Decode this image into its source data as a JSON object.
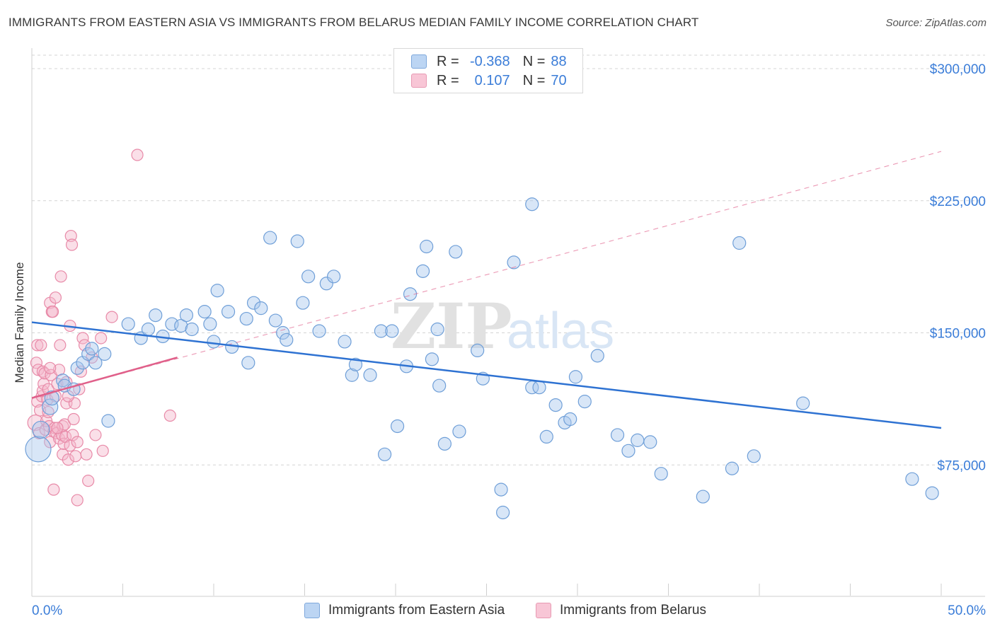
{
  "title": "IMMIGRANTS FROM EASTERN ASIA VS IMMIGRANTS FROM BELARUS MEDIAN FAMILY INCOME CORRELATION CHART",
  "source": "Source: ZipAtlas.com",
  "watermark": {
    "zip": "ZIP",
    "atlas": "atlas"
  },
  "legend_top": [
    {
      "r_label": "R =",
      "r_value": "-0.368",
      "n_label": "N =",
      "n_value": "88"
    },
    {
      "r_label": "R =",
      "r_value": "0.107",
      "n_label": "N =",
      "n_value": "70"
    }
  ],
  "legend_bottom": [
    "Immigrants from Eastern Asia",
    "Immigrants from Belarus"
  ],
  "colors": {
    "blue_fill": "#a9c8ee",
    "blue_stroke": "#6f9fd8",
    "blue_line": "#2e72d2",
    "pink_fill": "#f5b8cb",
    "pink_stroke": "#e88aa8",
    "pink_line": "#e0608a",
    "axis_text_blue": "#3b7dd8",
    "grid": "#d4d4d4"
  },
  "chart_data": {
    "type": "scatter",
    "title": "IMMIGRANTS FROM EASTERN ASIA VS IMMIGRANTS FROM BELARUS MEDIAN FAMILY INCOME CORRELATION CHART",
    "xlabel": "",
    "ylabel": "Median Family Income",
    "xlim": [
      0,
      50
    ],
    "ylim": [
      0,
      315000
    ],
    "x_tick_labels": [
      "0.0%",
      "50.0%"
    ],
    "y_ticks": [
      75000,
      150000,
      225000,
      300000
    ],
    "y_tick_labels": [
      "$75,000",
      "$150,000",
      "$225,000",
      "$300,000"
    ],
    "grid": true,
    "legend_position": "top-center",
    "series": [
      {
        "name": "Immigrants from Eastern Asia",
        "r": -0.368,
        "n": 88,
        "trend": {
          "x": [
            0,
            50
          ],
          "y": [
            156000,
            96000
          ]
        },
        "points": [
          [
            0.35,
            84000,
            18
          ],
          [
            0.5,
            95000,
            12
          ],
          [
            1.0,
            108000,
            11
          ],
          [
            1.1,
            113000,
            10
          ],
          [
            1.7,
            123000,
            9
          ],
          [
            1.8,
            120000,
            9
          ],
          [
            2.3,
            118000,
            9
          ],
          [
            2.5,
            130000,
            9
          ],
          [
            2.8,
            133000,
            9
          ],
          [
            3.1,
            138000,
            9
          ],
          [
            3.3,
            141000,
            9
          ],
          [
            3.5,
            133000,
            9
          ],
          [
            4.0,
            138000,
            9
          ],
          [
            4.2,
            100000,
            9
          ],
          [
            5.3,
            155000,
            9
          ],
          [
            6.0,
            147000,
            9
          ],
          [
            6.4,
            152000,
            9
          ],
          [
            6.8,
            160000,
            9
          ],
          [
            7.2,
            148000,
            9
          ],
          [
            7.7,
            155000,
            9
          ],
          [
            8.2,
            154000,
            9
          ],
          [
            8.5,
            160000,
            9
          ],
          [
            8.8,
            152000,
            9
          ],
          [
            9.5,
            162000,
            9
          ],
          [
            9.8,
            155000,
            9
          ],
          [
            10.0,
            145000,
            9
          ],
          [
            10.2,
            174000,
            9
          ],
          [
            10.8,
            162000,
            9
          ],
          [
            11.0,
            142000,
            9
          ],
          [
            11.8,
            158000,
            9
          ],
          [
            11.9,
            133000,
            9
          ],
          [
            12.2,
            167000,
            9
          ],
          [
            12.6,
            164000,
            9
          ],
          [
            13.1,
            204000,
            9
          ],
          [
            13.4,
            157000,
            9
          ],
          [
            13.8,
            150000,
            9
          ],
          [
            14.0,
            146000,
            9
          ],
          [
            14.6,
            202000,
            9
          ],
          [
            14.9,
            167000,
            9
          ],
          [
            15.2,
            182000,
            9
          ],
          [
            15.8,
            151000,
            9
          ],
          [
            16.2,
            178000,
            9
          ],
          [
            16.6,
            182000,
            9
          ],
          [
            17.2,
            145000,
            9
          ],
          [
            17.6,
            126000,
            9
          ],
          [
            17.8,
            132000,
            9
          ],
          [
            18.6,
            126000,
            9
          ],
          [
            19.2,
            151000,
            9
          ],
          [
            19.4,
            81000,
            9
          ],
          [
            19.8,
            151000,
            9
          ],
          [
            20.1,
            97000,
            9
          ],
          [
            20.6,
            131000,
            9
          ],
          [
            20.8,
            172000,
            9
          ],
          [
            21.5,
            185000,
            9
          ],
          [
            21.7,
            199000,
            9
          ],
          [
            22.0,
            135000,
            9
          ],
          [
            22.3,
            152000,
            9
          ],
          [
            22.4,
            120000,
            9
          ],
          [
            22.7,
            87000,
            9
          ],
          [
            23.3,
            196000,
            9
          ],
          [
            23.5,
            94000,
            9
          ],
          [
            24.5,
            140000,
            9
          ],
          [
            24.8,
            124000,
            9
          ],
          [
            25.8,
            61000,
            9
          ],
          [
            25.9,
            48000,
            9
          ],
          [
            26.5,
            190000,
            9
          ],
          [
            27.5,
            223000,
            9
          ],
          [
            27.5,
            119000,
            9
          ],
          [
            27.9,
            119000,
            9
          ],
          [
            28.3,
            91000,
            9
          ],
          [
            28.8,
            109000,
            9
          ],
          [
            29.3,
            99000,
            9
          ],
          [
            29.6,
            101000,
            9
          ],
          [
            29.9,
            125000,
            9
          ],
          [
            30.4,
            111000,
            9
          ],
          [
            31.1,
            137000,
            9
          ],
          [
            32.2,
            92000,
            9
          ],
          [
            32.8,
            83000,
            9
          ],
          [
            33.3,
            89000,
            9
          ],
          [
            34.0,
            88000,
            9
          ],
          [
            34.6,
            70000,
            9
          ],
          [
            36.9,
            57000,
            9
          ],
          [
            38.5,
            73000,
            9
          ],
          [
            38.9,
            201000,
            9
          ],
          [
            39.7,
            80000,
            9
          ],
          [
            42.4,
            110000,
            9
          ],
          [
            48.4,
            67000,
            9
          ],
          [
            49.5,
            59000,
            9
          ]
        ]
      },
      {
        "name": "Immigrants from Belarus",
        "r": 0.107,
        "n": 70,
        "trend": {
          "x": [
            0,
            8
          ],
          "y": [
            113000,
            136000
          ]
        },
        "trend_extended": {
          "x": [
            0,
            50
          ],
          "y": [
            113000,
            253000
          ]
        },
        "points": [
          [
            0.2,
            99000,
            11
          ],
          [
            0.25,
            133000,
            8
          ],
          [
            0.3,
            143000,
            8
          ],
          [
            0.3,
            111000,
            8
          ],
          [
            0.35,
            129000,
            8
          ],
          [
            0.4,
            93000,
            8
          ],
          [
            0.45,
            106000,
            8
          ],
          [
            0.5,
            143000,
            8
          ],
          [
            0.55,
            114000,
            8
          ],
          [
            0.6,
            128000,
            8
          ],
          [
            0.6,
            117000,
            8
          ],
          [
            0.65,
            121000,
            8
          ],
          [
            0.7,
            127000,
            8
          ],
          [
            0.75,
            95000,
            8
          ],
          [
            0.8,
            100000,
            8
          ],
          [
            0.85,
            112000,
            8
          ],
          [
            0.9,
            118000,
            8
          ],
          [
            0.95,
            97000,
            8
          ],
          [
            1.0,
            88000,
            8
          ],
          [
            1.0,
            167000,
            8
          ],
          [
            1.05,
            126000,
            8
          ],
          [
            1.1,
            162000,
            8
          ],
          [
            1.15,
            162000,
            8
          ],
          [
            1.2,
            94000,
            8
          ],
          [
            1.2,
            61000,
            8
          ],
          [
            1.25,
            96000,
            8
          ],
          [
            1.3,
            170000,
            8
          ],
          [
            1.3,
            114000,
            8
          ],
          [
            1.35,
            93000,
            8
          ],
          [
            1.4,
            121000,
            8
          ],
          [
            1.5,
            90000,
            8
          ],
          [
            1.5,
            129000,
            8
          ],
          [
            1.55,
            143000,
            8
          ],
          [
            1.6,
            182000,
            8
          ],
          [
            1.65,
            92000,
            8
          ],
          [
            1.7,
            97000,
            8
          ],
          [
            1.7,
            81000,
            8
          ],
          [
            1.75,
            87000,
            8
          ],
          [
            1.8,
            98000,
            8
          ],
          [
            1.85,
            91000,
            8
          ],
          [
            1.9,
            110000,
            8
          ],
          [
            1.9,
            122000,
            8
          ],
          [
            2.0,
            78000,
            8
          ],
          [
            2.1,
            86000,
            8
          ],
          [
            2.1,
            154000,
            8
          ],
          [
            2.15,
            205000,
            8
          ],
          [
            2.2,
            200000,
            8
          ],
          [
            2.25,
            92000,
            8
          ],
          [
            2.3,
            101000,
            8
          ],
          [
            2.35,
            110000,
            8
          ],
          [
            2.4,
            80000,
            8
          ],
          [
            2.5,
            88000,
            8
          ],
          [
            2.5,
            55000,
            8
          ],
          [
            2.6,
            118000,
            8
          ],
          [
            2.7,
            128000,
            8
          ],
          [
            2.8,
            147000,
            8
          ],
          [
            2.9,
            143000,
            8
          ],
          [
            3.0,
            81000,
            8
          ],
          [
            3.1,
            66000,
            8
          ],
          [
            3.3,
            136000,
            8
          ],
          [
            3.5,
            92000,
            8
          ],
          [
            3.8,
            147000,
            8
          ],
          [
            3.9,
            83000,
            8
          ],
          [
            4.4,
            159000,
            8
          ],
          [
            5.8,
            251000,
            8
          ],
          [
            7.6,
            103000,
            8
          ],
          [
            1.0,
            130000,
            8
          ],
          [
            0.9,
            105000,
            8
          ],
          [
            1.4,
            96000,
            8
          ],
          [
            2.0,
            114000,
            8
          ]
        ]
      }
    ]
  }
}
